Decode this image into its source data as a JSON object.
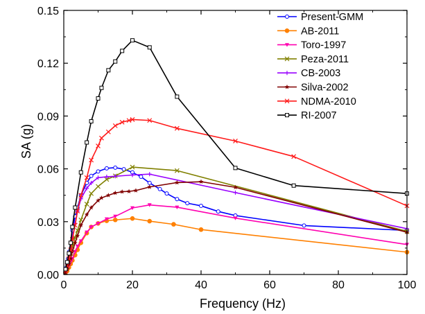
{
  "chart_data": {
    "type": "line",
    "title": "",
    "xlabel": "Frequency (Hz)",
    "ylabel": "SA (g)",
    "xlim": [
      0,
      100
    ],
    "ylim": [
      0,
      0.15
    ],
    "xticks": [
      0,
      20,
      40,
      60,
      80,
      100
    ],
    "yticks": [
      0.0,
      0.03,
      0.06,
      0.09,
      0.12,
      0.15
    ],
    "xtick_labels": [
      "0",
      "20",
      "40",
      "60",
      "80",
      "100"
    ],
    "ytick_labels": [
      "0.00",
      "0.03",
      "0.06",
      "0.09",
      "0.12",
      "0.15"
    ],
    "grid": false,
    "legend_position": "top-right",
    "series": [
      {
        "name": "Present-GMM",
        "color": "#0000ff",
        "marker": "circle-open",
        "x": [
          0.5,
          0.8,
          1,
          1.25,
          1.6,
          2,
          2.5,
          3.3,
          4,
          5,
          6.7,
          8,
          10,
          12.5,
          15,
          17.5,
          20,
          22.5,
          25,
          28,
          30,
          33,
          36,
          40,
          45,
          50,
          70,
          100
        ],
        "y": [
          0.002,
          0.004,
          0.006,
          0.009,
          0.013,
          0.018,
          0.025,
          0.033,
          0.038,
          0.045,
          0.052,
          0.056,
          0.0585,
          0.0603,
          0.0607,
          0.0598,
          0.058,
          0.0555,
          0.052,
          0.0485,
          0.046,
          0.0428,
          0.0405,
          0.039,
          0.0358,
          0.0335,
          0.0278,
          0.025
        ]
      },
      {
        "name": "AB-2011",
        "color": "#ff8000",
        "marker": "circle-filled",
        "x": [
          0.5,
          1,
          1.5,
          2,
          2.5,
          3.3,
          4,
          5,
          6.7,
          8,
          10,
          12.5,
          15,
          20,
          25,
          32,
          40,
          100
        ],
        "y": [
          0.001,
          0.002,
          0.004,
          0.006,
          0.008,
          0.011,
          0.014,
          0.018,
          0.0235,
          0.027,
          0.029,
          0.0305,
          0.031,
          0.0318,
          0.0303,
          0.0285,
          0.0255,
          0.0127
        ]
      },
      {
        "name": "Toro-1997",
        "color": "#ff00b0",
        "marker": "triangle-down",
        "x": [
          0.5,
          1,
          1.5,
          2,
          2.5,
          3.3,
          4,
          5,
          6.7,
          8,
          10,
          12.5,
          15,
          20,
          25,
          33,
          50,
          100
        ],
        "y": [
          0.001,
          0.003,
          0.005,
          0.007,
          0.009,
          0.013,
          0.016,
          0.019,
          0.024,
          0.027,
          0.029,
          0.0315,
          0.033,
          0.0378,
          0.0395,
          0.0382,
          0.032,
          0.017
        ]
      },
      {
        "name": "Peza-2011",
        "color": "#808000",
        "marker": "x",
        "x": [
          0.5,
          1,
          1.5,
          2,
          2.5,
          3.3,
          4,
          5,
          6.7,
          8,
          10,
          12.5,
          15,
          20,
          33,
          100
        ],
        "y": [
          0.002,
          0.004,
          0.008,
          0.012,
          0.016,
          0.021,
          0.025,
          0.031,
          0.04,
          0.046,
          0.05,
          0.054,
          0.056,
          0.061,
          0.059,
          0.0245
        ]
      },
      {
        "name": "CB-2003",
        "color": "#9900ff",
        "marker": "plus",
        "x": [
          0.5,
          1,
          1.5,
          2,
          2.5,
          3.3,
          4,
          5,
          6.7,
          8,
          10,
          12.5,
          15,
          20,
          25,
          50,
          100
        ],
        "y": [
          0.003,
          0.006,
          0.01,
          0.015,
          0.021,
          0.029,
          0.036,
          0.043,
          0.049,
          0.052,
          0.055,
          0.0555,
          0.0558,
          0.0565,
          0.057,
          0.0465,
          0.026
        ]
      },
      {
        "name": "Silva-2002",
        "color": "#800000",
        "marker": "star",
        "x": [
          0.5,
          1,
          1.5,
          2,
          2.5,
          3.3,
          4,
          5,
          6.7,
          8,
          10,
          11,
          13,
          15,
          17,
          19,
          21,
          25,
          33,
          40,
          50,
          100
        ],
        "y": [
          0.001,
          0.003,
          0.006,
          0.009,
          0.013,
          0.018,
          0.022,
          0.028,
          0.034,
          0.038,
          0.042,
          0.0435,
          0.045,
          0.0463,
          0.047,
          0.0472,
          0.0477,
          0.0497,
          0.0522,
          0.0527,
          0.0495,
          0.024
        ]
      },
      {
        "name": "NDMA-2010",
        "color": "#ff1a1a",
        "marker": "x",
        "x": [
          0.5,
          1,
          1.5,
          2,
          2.5,
          3.3,
          4,
          5,
          6.7,
          8,
          10,
          11,
          13,
          15,
          17,
          19,
          20,
          25,
          33,
          50,
          67,
          100
        ],
        "y": [
          0.002,
          0.005,
          0.009,
          0.014,
          0.02,
          0.028,
          0.036,
          0.045,
          0.055,
          0.065,
          0.073,
          0.0775,
          0.081,
          0.0845,
          0.0865,
          0.0875,
          0.088,
          0.0875,
          0.083,
          0.0758,
          0.067,
          0.039
        ]
      },
      {
        "name": "RI-2007",
        "color": "#000000",
        "marker": "square-open",
        "x": [
          0.5,
          1,
          1.5,
          2,
          2.5,
          3.3,
          5,
          6.7,
          8,
          10,
          11,
          13,
          15,
          17,
          20,
          25,
          33,
          50,
          67,
          100
        ],
        "y": [
          0.003,
          0.007,
          0.012,
          0.018,
          0.027,
          0.038,
          0.058,
          0.075,
          0.087,
          0.1,
          0.106,
          0.116,
          0.121,
          0.127,
          0.133,
          0.129,
          0.101,
          0.0605,
          0.0505,
          0.046
        ]
      }
    ]
  }
}
